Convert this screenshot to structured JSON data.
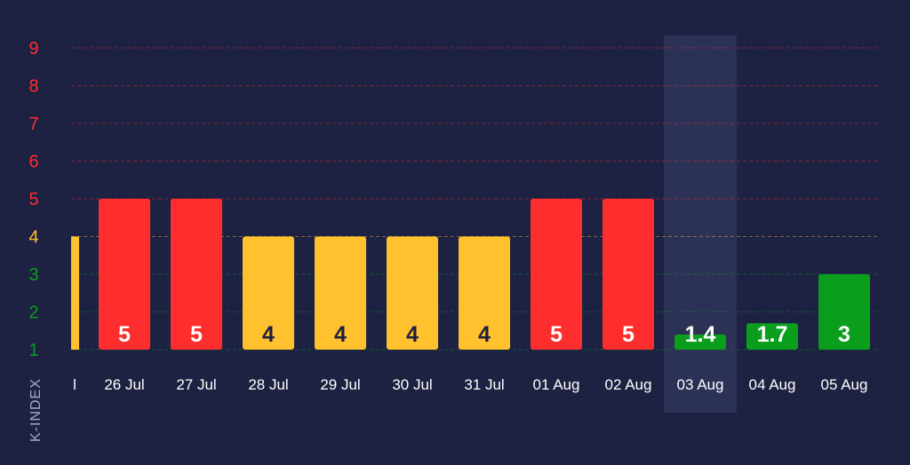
{
  "chart_data": {
    "type": "bar",
    "ylabel": "K-INDEX",
    "ylim": [
      1,
      9
    ],
    "yticks": [
      "1",
      "2",
      "3",
      "4",
      "5",
      "6",
      "7",
      "8",
      "9"
    ],
    "partial_first_label": "l",
    "categories": [
      "26 Jul",
      "27 Jul",
      "28 Jul",
      "29 Jul",
      "30 Jul",
      "31 Jul",
      "01 Aug",
      "02 Aug",
      "03 Aug",
      "04 Aug",
      "05 Aug"
    ],
    "values": [
      5,
      5,
      4,
      4,
      4,
      4,
      5,
      5,
      1.4,
      1.7,
      3
    ],
    "value_labels": [
      "5",
      "5",
      "4",
      "4",
      "4",
      "4",
      "5",
      "5",
      "1.4",
      "1.7",
      "3"
    ],
    "partial_first_value": 4,
    "highlighted_category": "03 Aug",
    "grid": true,
    "colors": {
      "background": "#1d2142",
      "storm": "#ff2e2e",
      "active": "#ffc12e",
      "quiet": "#0a9e1c",
      "label_dark": "#1d2142",
      "label_light": "#ffffff",
      "highlight": "#2f3459"
    }
  }
}
